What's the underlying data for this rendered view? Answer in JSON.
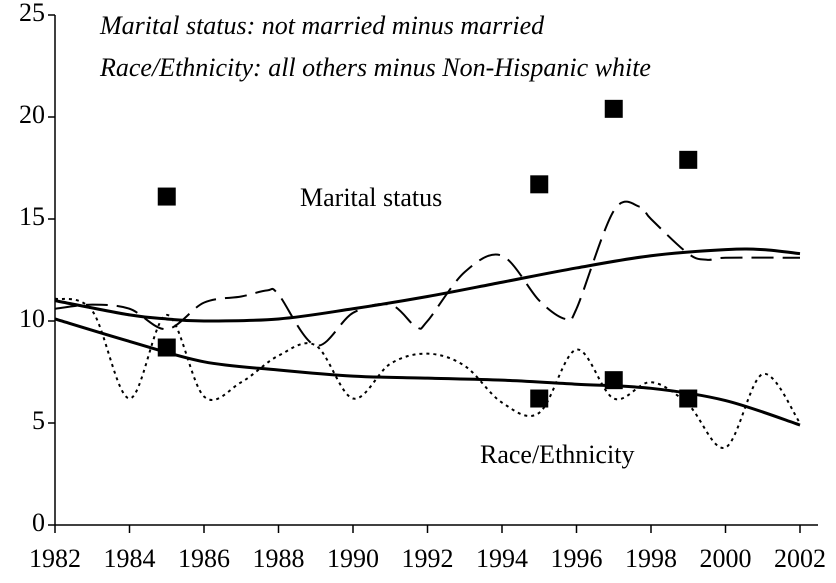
{
  "chart_data": {
    "type": "line",
    "annotations": [
      "Marital status: not married minus married",
      "Race/Ethnicity: all others minus Non-Hispanic white"
    ],
    "xlim": [
      1982,
      2002
    ],
    "xticks": [
      1982,
      1984,
      1986,
      1988,
      1990,
      1992,
      1994,
      1996,
      1998,
      2000,
      2002
    ],
    "ylim": [
      0,
      25
    ],
    "yticks": [
      0,
      5,
      10,
      15,
      20,
      25
    ],
    "grid": false,
    "groups": [
      {
        "name": "Marital status",
        "color": "#000000",
        "points": {
          "x": [
            1985,
            1995,
            1997,
            1999
          ],
          "values": [
            16.1,
            16.7,
            20.4,
            17.9
          ]
        },
        "fluctuating": {
          "dash": "dashed",
          "x": [
            1982,
            1983,
            1984,
            1985,
            1986,
            1987,
            1987.7,
            1988,
            1989,
            1990,
            1991,
            1991.7,
            1992,
            1993,
            1994,
            1995,
            1995.7,
            1996,
            1997,
            1997.7,
            1998,
            1999,
            1999.5,
            2000,
            2002
          ],
          "values": [
            10.6,
            10.8,
            10.6,
            9.6,
            10.9,
            11.2,
            11.5,
            11.3,
            8.8,
            10.4,
            10.8,
            9.7,
            10.0,
            12.4,
            13.2,
            11.0,
            10.1,
            10.6,
            15.4,
            15.6,
            15.0,
            13.3,
            13.0,
            13.1,
            13.1
          ]
        },
        "trend": {
          "x": [
            1982,
            1984,
            1985,
            1986,
            1988,
            1990,
            1992,
            1994,
            1996,
            1998,
            2000,
            2001,
            2002
          ],
          "values": [
            11.0,
            10.3,
            10.1,
            10.0,
            10.1,
            10.6,
            11.2,
            11.9,
            12.6,
            13.2,
            13.5,
            13.5,
            13.3
          ]
        }
      },
      {
        "name": "Race/Ethnicity",
        "color": "#000000",
        "points": {
          "x": [
            1985,
            1995,
            1997,
            1999
          ],
          "values": [
            8.7,
            6.2,
            7.1,
            6.2
          ]
        },
        "fluctuating": {
          "dash": "dotted",
          "x": [
            1982,
            1983,
            1984,
            1985,
            1986,
            1987,
            1988,
            1989,
            1990,
            1991,
            1992,
            1993,
            1994,
            1995,
            1996,
            1997,
            1998,
            1999,
            2000,
            2001,
            2002
          ],
          "values": [
            11.1,
            10.5,
            6.2,
            10.3,
            6.3,
            7.0,
            8.3,
            8.8,
            6.2,
            7.9,
            8.4,
            7.8,
            6.0,
            5.5,
            8.6,
            6.2,
            7.0,
            5.9,
            3.8,
            7.4,
            5.0
          ]
        },
        "trend": {
          "x": [
            1982,
            1984,
            1986,
            1988,
            1990,
            1992,
            1994,
            1996,
            1998,
            2000,
            2002
          ],
          "values": [
            10.1,
            9.0,
            8.0,
            7.6,
            7.3,
            7.2,
            7.1,
            6.9,
            6.7,
            6.1,
            4.9
          ]
        }
      }
    ]
  }
}
